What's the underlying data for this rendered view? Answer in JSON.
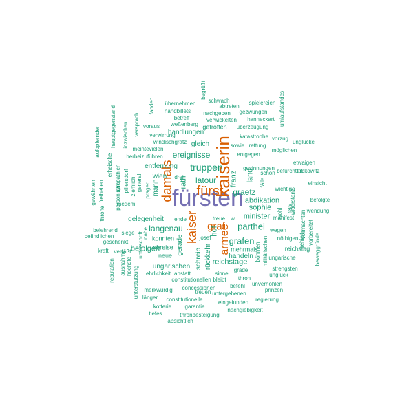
{
  "colors": {
    "small": "#1b9e77",
    "medium": "#d95f02",
    "large": "#7570b3"
  },
  "words": [
    {
      "text": "fürsten",
      "tier": "large"
    },
    {
      "text": "kaiserin",
      "tier": "medium"
    },
    {
      "text": "damals",
      "tier": "medium"
    },
    {
      "text": "fürst",
      "tier": "medium"
    },
    {
      "text": "kaiser",
      "tier": "medium"
    },
    {
      "text": "graf",
      "tier": "medium"
    },
    {
      "text": "armee",
      "tier": "medium"
    },
    {
      "text": "truppen",
      "tier": "small"
    },
    {
      "text": "latour",
      "tier": "small"
    },
    {
      "text": "langenau",
      "tier": "small"
    },
    {
      "text": "grafen",
      "tier": "small"
    },
    {
      "text": "parthei",
      "tier": "small"
    },
    {
      "text": "graetz",
      "tier": "small"
    },
    {
      "text": "minister",
      "tier": "small"
    },
    {
      "text": "sophie",
      "tier": "small"
    },
    {
      "text": "abdikation",
      "tier": "small"
    },
    {
      "text": "ereignisse",
      "tier": "small"
    },
    {
      "text": "reichstage",
      "tier": "small"
    },
    {
      "text": "befolgen",
      "tier": "small"
    },
    {
      "text": "gelegenheit",
      "tier": "small"
    },
    {
      "text": "ungarischen",
      "tier": "small"
    },
    {
      "text": "hof",
      "tier": "small"
    },
    {
      "text": "franz",
      "tier": "small"
    },
    {
      "text": "land",
      "tier": "small"
    },
    {
      "text": "wien",
      "tier": "small"
    },
    {
      "text": "rath",
      "tier": "small"
    },
    {
      "text": "mann",
      "tier": "small"
    },
    {
      "text": "gerade",
      "tier": "small"
    },
    {
      "text": "schreib",
      "tier": "small"
    },
    {
      "text": "rückkehr",
      "tier": "small"
    },
    {
      "text": "handeln",
      "tier": "small"
    },
    {
      "text": "mehrmals",
      "tier": "small"
    },
    {
      "text": "reichstag",
      "tier": "small"
    },
    {
      "text": "entfernung",
      "tier": "small"
    },
    {
      "text": "handlungen",
      "tier": "small"
    },
    {
      "text": "getroffen",
      "tier": "small"
    },
    {
      "text": "gleich",
      "tier": "small"
    },
    {
      "text": "konnten",
      "tier": "small"
    },
    {
      "text": "abreise",
      "tier": "small"
    },
    {
      "text": "neue",
      "tier": "small"
    },
    {
      "text": "josef",
      "tier": "small"
    },
    {
      "text": "treue",
      "tier": "small"
    },
    {
      "text": "sinne",
      "tier": "small"
    },
    {
      "text": "grade",
      "tier": "small"
    },
    {
      "text": "thron",
      "tier": "small"
    },
    {
      "text": "befehl",
      "tier": "small"
    },
    {
      "text": "bleibt",
      "tier": "small"
    },
    {
      "text": "concessionen",
      "tier": "small"
    },
    {
      "text": "constitutionellen",
      "tier": "small"
    },
    {
      "text": "anstatt",
      "tier": "small"
    },
    {
      "text": "ehrlichkeit",
      "tier": "small"
    },
    {
      "text": "merkwürdig",
      "tier": "small"
    },
    {
      "text": "treuen",
      "tier": "small"
    },
    {
      "text": "untergebenen",
      "tier": "small"
    },
    {
      "text": "länger",
      "tier": "small"
    },
    {
      "text": "constitutionelle",
      "tier": "small"
    },
    {
      "text": "eingefunden",
      "tier": "small"
    },
    {
      "text": "kotterie",
      "tier": "small"
    },
    {
      "text": "garantie",
      "tier": "small"
    },
    {
      "text": "tiefes",
      "tier": "small"
    },
    {
      "text": "thronbesteigung",
      "tier": "small"
    },
    {
      "text": "nachgiebigkeit",
      "tier": "small"
    },
    {
      "text": "absichtlich",
      "tier": "small"
    },
    {
      "text": "regierung",
      "tier": "small"
    },
    {
      "text": "prinzen",
      "tier": "small"
    },
    {
      "text": "unverhohlen",
      "tier": "small"
    },
    {
      "text": "strengsten",
      "tier": "small"
    },
    {
      "text": "unglück",
      "tier": "small"
    },
    {
      "text": "ungarische",
      "tier": "small"
    },
    {
      "text": "nöthigen",
      "tier": "small"
    },
    {
      "text": "wegen",
      "tier": "small"
    },
    {
      "text": "manifest",
      "tier": "small"
    },
    {
      "text": "schon",
      "tier": "small"
    },
    {
      "text": "wichtige",
      "tier": "small"
    },
    {
      "text": "befürchten",
      "tier": "small"
    },
    {
      "text": "lobkowitz",
      "tier": "small"
    },
    {
      "text": "etwaigen",
      "tier": "small"
    },
    {
      "text": "einsicht",
      "tier": "small"
    },
    {
      "text": "befolgte",
      "tier": "small"
    },
    {
      "text": "wendung",
      "tier": "small"
    },
    {
      "text": "vollmachten",
      "tier": "small"
    },
    {
      "text": "vorbereitet",
      "tier": "small"
    },
    {
      "text": "beweggründe",
      "tier": "small"
    },
    {
      "text": "behielt",
      "tier": "small"
    },
    {
      "text": "felix",
      "tier": "small"
    },
    {
      "text": "widerstand",
      "tier": "small"
    },
    {
      "text": "wohl",
      "tier": "small"
    },
    {
      "text": "fälle",
      "tier": "small"
    },
    {
      "text": "gesinnungen",
      "tier": "small"
    },
    {
      "text": "entgegen",
      "tier": "small"
    },
    {
      "text": "möglichen",
      "tier": "small"
    },
    {
      "text": "sowie",
      "tier": "small"
    },
    {
      "text": "rettung",
      "tier": "small"
    },
    {
      "text": "katastrophe",
      "tier": "small"
    },
    {
      "text": "vorzug",
      "tier": "small"
    },
    {
      "text": "unglücke",
      "tier": "small"
    },
    {
      "text": "überzeugung",
      "tier": "small"
    },
    {
      "text": "hanneckart",
      "tier": "small"
    },
    {
      "text": "gezwungen",
      "tier": "small"
    },
    {
      "text": "verwickelten",
      "tier": "small"
    },
    {
      "text": "abtreten",
      "tier": "small"
    },
    {
      "text": "nachgeben",
      "tier": "small"
    },
    {
      "text": "schwach",
      "tier": "small"
    },
    {
      "text": "begrüßt",
      "tier": "small"
    },
    {
      "text": "spielereien",
      "tier": "small"
    },
    {
      "text": "umlaufstandes",
      "tier": "small"
    },
    {
      "text": "übernehmen",
      "tier": "small"
    },
    {
      "text": "handbillets",
      "tier": "small"
    },
    {
      "text": "betreff",
      "tier": "small"
    },
    {
      "text": "weßenberg",
      "tier": "small"
    },
    {
      "text": "voraus",
      "tier": "small"
    },
    {
      "text": "verwirrung",
      "tier": "small"
    },
    {
      "text": "windischgrätz",
      "tier": "small"
    },
    {
      "text": "meintevielen",
      "tier": "small"
    },
    {
      "text": "herbeizuführen",
      "tier": "small"
    },
    {
      "text": "fanden",
      "tier": "small"
    },
    {
      "text": "versprach",
      "tier": "small"
    },
    {
      "text": "inzwischen",
      "tier": "small"
    },
    {
      "text": "hauptgegenstand",
      "tier": "small"
    },
    {
      "text": "erheische",
      "tier": "small"
    },
    {
      "text": "sympathien",
      "tier": "small"
    },
    {
      "text": "pillersdorf",
      "tier": "small"
    },
    {
      "text": "persönlicher",
      "tier": "small"
    },
    {
      "text": "aufopfernder",
      "tier": "small"
    },
    {
      "text": "freiheiten",
      "tier": "small"
    },
    {
      "text": "gewährten",
      "tier": "small"
    },
    {
      "text": "throne",
      "tier": "small"
    },
    {
      "text": "ziemlich",
      "tier": "small"
    },
    {
      "text": "general",
      "tier": "small"
    },
    {
      "text": "prager",
      "tier": "small"
    },
    {
      "text": "medem",
      "tier": "small"
    },
    {
      "text": "drei",
      "tier": "small"
    },
    {
      "text": "ende",
      "tier": "small"
    },
    {
      "text": "siege",
      "tier": "small"
    },
    {
      "text": "belehrend",
      "tier": "small"
    },
    {
      "text": "befindlichen",
      "tier": "small"
    },
    {
      "text": "geschenkt",
      "tier": "small"
    },
    {
      "text": "kraft",
      "tier": "small"
    },
    {
      "text": "verfäßt",
      "tier": "small"
    },
    {
      "text": "nahe",
      "tier": "small"
    },
    {
      "text": "unterschrift",
      "tier": "small"
    },
    {
      "text": "unterstützung",
      "tier": "small"
    },
    {
      "text": "höchste",
      "tier": "small"
    },
    {
      "text": "ausnahme",
      "tier": "small"
    },
    {
      "text": "reputation",
      "tier": "small"
    },
    {
      "text": "w",
      "tier": "small"
    },
    {
      "text": "böhmen",
      "tier": "small"
    },
    {
      "text": "militärischen",
      "tier": "small"
    }
  ]
}
